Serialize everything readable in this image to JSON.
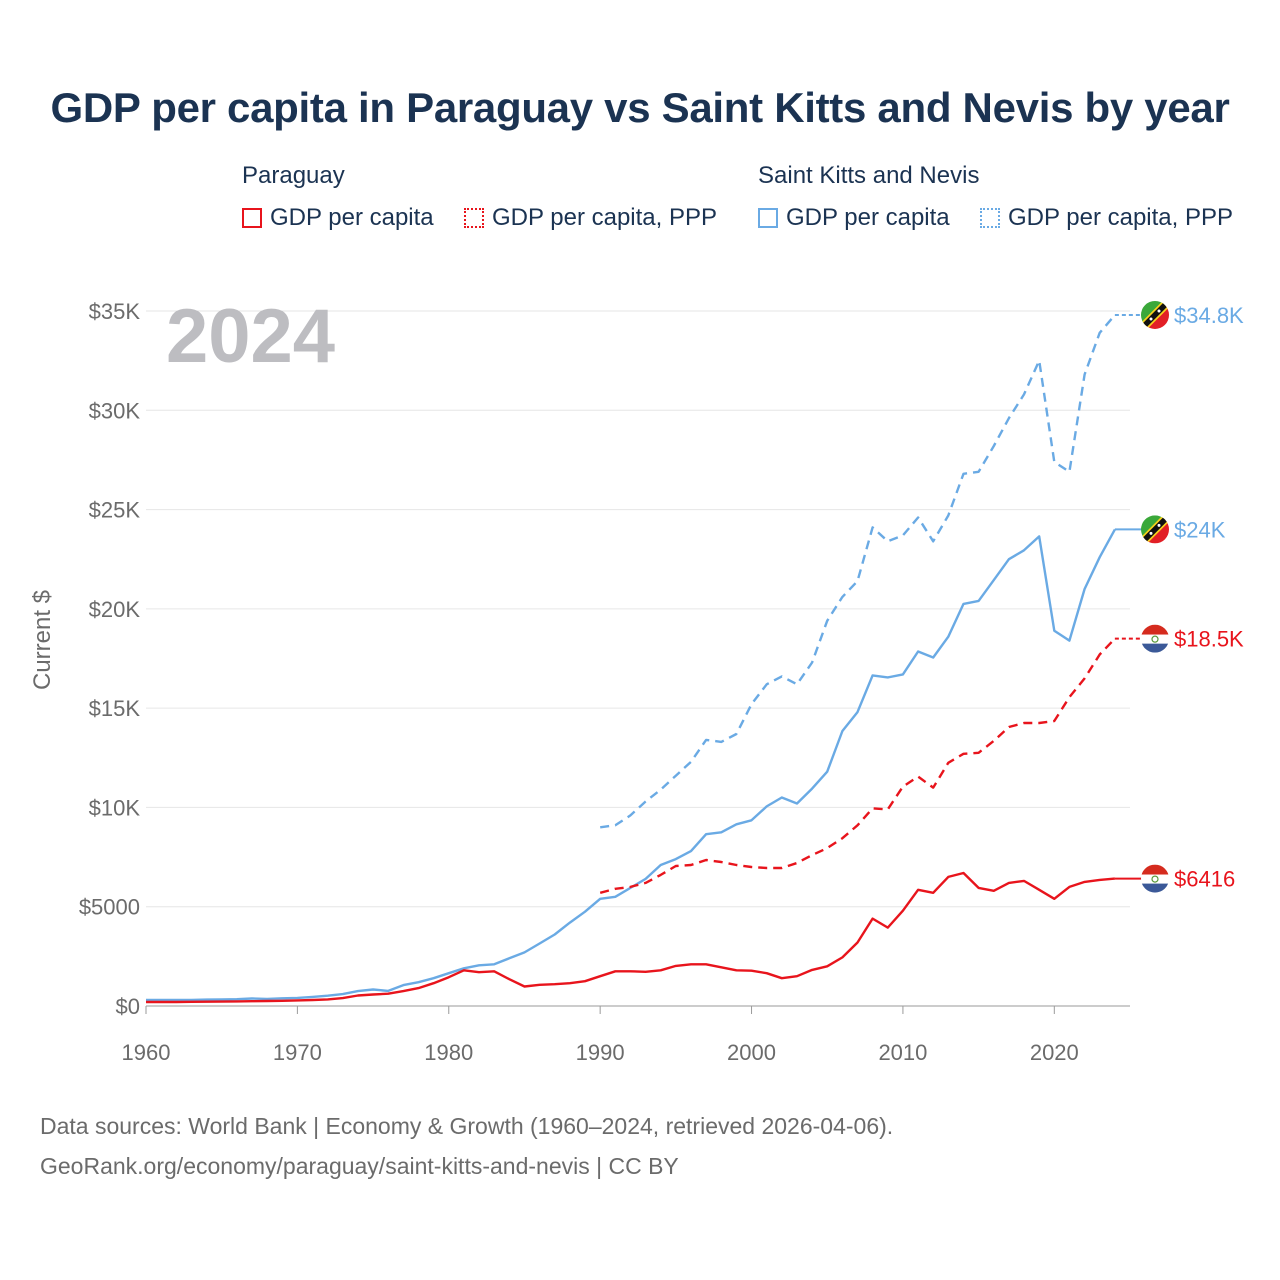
{
  "title": "GDP per capita in Paraguay vs Saint Kitts and Nevis by year",
  "legend": {
    "groups": [
      {
        "name": "Paraguay",
        "items": [
          "GDP per capita",
          "GDP per capita, PPP"
        ]
      },
      {
        "name": "Saint Kitts and Nevis",
        "items": [
          "GDP per capita",
          "GDP per capita, PPP"
        ]
      }
    ]
  },
  "colors": {
    "paraguay": "#e8141c",
    "skn": "#6aaae4",
    "grid": "#e6e6e6",
    "axis": "#9a9a9a"
  },
  "year_label": "2024",
  "footer": {
    "line1": "Data sources: World Bank | Economy & Growth (1960–2024, retrieved 2026-04-06).",
    "line2": "GeoRank.org/economy/paraguay/saint-kitts-and-nevis | CC BY"
  },
  "chart_data": {
    "type": "line",
    "title": "GDP per capita in Paraguay vs Saint Kitts and Nevis by year",
    "xlabel": "",
    "ylabel": "Current $",
    "xlim": [
      1960,
      2025
    ],
    "ylim": [
      0,
      35000
    ],
    "x_ticks": [
      1960,
      1970,
      1980,
      1990,
      2000,
      2010,
      2020
    ],
    "x_tick_labels": [
      "1960",
      "1970",
      "1980",
      "1990",
      "2000",
      "2010",
      "2020"
    ],
    "y_ticks": [
      0,
      5000,
      10000,
      15000,
      20000,
      25000,
      30000,
      35000
    ],
    "y_tick_labels": [
      "$0",
      "$5000",
      "$10K",
      "$15K",
      "$20K",
      "$25K",
      "$30K",
      "$35K"
    ],
    "series": [
      {
        "name": "Saint Kitts and Nevis GDP per capita, PPP",
        "country": "Saint Kitts and Nevis",
        "style": "dashed",
        "color": "#6aaae4",
        "end_label": "$34.8K",
        "points": [
          [
            1990,
            9000
          ],
          [
            1991,
            9100
          ],
          [
            1992,
            9600
          ],
          [
            1993,
            10300
          ],
          [
            1994,
            10900
          ],
          [
            1995,
            11600
          ],
          [
            1996,
            12300
          ],
          [
            1997,
            13400
          ],
          [
            1998,
            13300
          ],
          [
            1999,
            13700
          ],
          [
            2000,
            15200
          ],
          [
            2001,
            16200
          ],
          [
            2002,
            16600
          ],
          [
            2003,
            16200
          ],
          [
            2004,
            17300
          ],
          [
            2005,
            19400
          ],
          [
            2006,
            20600
          ],
          [
            2007,
            21400
          ],
          [
            2008,
            24100
          ],
          [
            2009,
            23400
          ],
          [
            2010,
            23700
          ],
          [
            2011,
            24600
          ],
          [
            2012,
            23400
          ],
          [
            2013,
            24700
          ],
          [
            2014,
            26800
          ],
          [
            2015,
            26900
          ],
          [
            2016,
            28200
          ],
          [
            2017,
            29600
          ],
          [
            2018,
            30800
          ],
          [
            2019,
            32500
          ],
          [
            2020,
            27400
          ],
          [
            2021,
            26900
          ],
          [
            2022,
            31800
          ],
          [
            2023,
            33900
          ],
          [
            2024,
            34800
          ]
        ]
      },
      {
        "name": "Saint Kitts and Nevis GDP per capita",
        "country": "Saint Kitts and Nevis",
        "style": "solid",
        "color": "#6aaae4",
        "end_label": "$24K",
        "points": [
          [
            1960,
            300
          ],
          [
            1961,
            300
          ],
          [
            1962,
            300
          ],
          [
            1963,
            300
          ],
          [
            1964,
            320
          ],
          [
            1965,
            330
          ],
          [
            1966,
            340
          ],
          [
            1967,
            380
          ],
          [
            1968,
            360
          ],
          [
            1969,
            390
          ],
          [
            1970,
            410
          ],
          [
            1971,
            460
          ],
          [
            1972,
            520
          ],
          [
            1973,
            600
          ],
          [
            1974,
            750
          ],
          [
            1975,
            830
          ],
          [
            1976,
            760
          ],
          [
            1977,
            1050
          ],
          [
            1978,
            1200
          ],
          [
            1979,
            1400
          ],
          [
            1980,
            1650
          ],
          [
            1981,
            1900
          ],
          [
            1982,
            2050
          ],
          [
            1983,
            2100
          ],
          [
            1984,
            2400
          ],
          [
            1985,
            2700
          ],
          [
            1986,
            3150
          ],
          [
            1987,
            3600
          ],
          [
            1988,
            4200
          ],
          [
            1989,
            4750
          ],
          [
            1990,
            5400
          ],
          [
            1991,
            5500
          ],
          [
            1992,
            5950
          ],
          [
            1993,
            6400
          ],
          [
            1994,
            7100
          ],
          [
            1995,
            7400
          ],
          [
            1996,
            7800
          ],
          [
            1997,
            8650
          ],
          [
            1998,
            8750
          ],
          [
            1999,
            9150
          ],
          [
            2000,
            9350
          ],
          [
            2001,
            10050
          ],
          [
            2002,
            10500
          ],
          [
            2003,
            10200
          ],
          [
            2004,
            10950
          ],
          [
            2005,
            11800
          ],
          [
            2006,
            13850
          ],
          [
            2007,
            14800
          ],
          [
            2008,
            16650
          ],
          [
            2009,
            16550
          ],
          [
            2010,
            16700
          ],
          [
            2011,
            17850
          ],
          [
            2012,
            17550
          ],
          [
            2013,
            18600
          ],
          [
            2014,
            20250
          ],
          [
            2015,
            20400
          ],
          [
            2016,
            21450
          ],
          [
            2017,
            22500
          ],
          [
            2018,
            22950
          ],
          [
            2019,
            23650
          ],
          [
            2020,
            18900
          ],
          [
            2021,
            18400
          ],
          [
            2022,
            21000
          ],
          [
            2023,
            22600
          ],
          [
            2024,
            24000
          ]
        ]
      },
      {
        "name": "Paraguay GDP per capita, PPP",
        "country": "Paraguay",
        "style": "dashed",
        "color": "#e8141c",
        "end_label": "$18.5K",
        "points": [
          [
            1990,
            5700
          ],
          [
            1991,
            5900
          ],
          [
            1992,
            6000
          ],
          [
            1993,
            6200
          ],
          [
            1994,
            6600
          ],
          [
            1995,
            7050
          ],
          [
            1996,
            7100
          ],
          [
            1997,
            7350
          ],
          [
            1998,
            7250
          ],
          [
            1999,
            7100
          ],
          [
            2000,
            7000
          ],
          [
            2001,
            6950
          ],
          [
            2002,
            6950
          ],
          [
            2003,
            7200
          ],
          [
            2004,
            7600
          ],
          [
            2005,
            7950
          ],
          [
            2006,
            8450
          ],
          [
            2007,
            9100
          ],
          [
            2008,
            9950
          ],
          [
            2009,
            9900
          ],
          [
            2010,
            11050
          ],
          [
            2011,
            11550
          ],
          [
            2012,
            11000
          ],
          [
            2013,
            12250
          ],
          [
            2014,
            12700
          ],
          [
            2015,
            12750
          ],
          [
            2016,
            13350
          ],
          [
            2017,
            14050
          ],
          [
            2018,
            14250
          ],
          [
            2019,
            14250
          ],
          [
            2020,
            14350
          ],
          [
            2021,
            15550
          ],
          [
            2022,
            16500
          ],
          [
            2023,
            17700
          ],
          [
            2024,
            18500
          ]
        ]
      },
      {
        "name": "Paraguay GDP per capita",
        "country": "Paraguay",
        "style": "solid",
        "color": "#e8141c",
        "end_label": "$6416",
        "points": [
          [
            1960,
            200
          ],
          [
            1961,
            200
          ],
          [
            1962,
            200
          ],
          [
            1963,
            210
          ],
          [
            1964,
            215
          ],
          [
            1965,
            220
          ],
          [
            1966,
            230
          ],
          [
            1967,
            240
          ],
          [
            1968,
            250
          ],
          [
            1969,
            260
          ],
          [
            1970,
            280
          ],
          [
            1971,
            300
          ],
          [
            1972,
            330
          ],
          [
            1973,
            400
          ],
          [
            1974,
            530
          ],
          [
            1975,
            580
          ],
          [
            1976,
            620
          ],
          [
            1977,
            750
          ],
          [
            1978,
            900
          ],
          [
            1979,
            1150
          ],
          [
            1980,
            1450
          ],
          [
            1981,
            1800
          ],
          [
            1982,
            1700
          ],
          [
            1983,
            1750
          ],
          [
            1984,
            1350
          ],
          [
            1985,
            980
          ],
          [
            1986,
            1070
          ],
          [
            1987,
            1100
          ],
          [
            1988,
            1150
          ],
          [
            1989,
            1250
          ],
          [
            1990,
            1500
          ],
          [
            1991,
            1750
          ],
          [
            1992,
            1750
          ],
          [
            1993,
            1720
          ],
          [
            1994,
            1800
          ],
          [
            1995,
            2020
          ],
          [
            1996,
            2100
          ],
          [
            1997,
            2100
          ],
          [
            1998,
            1950
          ],
          [
            1999,
            1800
          ],
          [
            2000,
            1780
          ],
          [
            2001,
            1650
          ],
          [
            2002,
            1400
          ],
          [
            2003,
            1500
          ],
          [
            2004,
            1820
          ],
          [
            2005,
            2000
          ],
          [
            2006,
            2450
          ],
          [
            2007,
            3200
          ],
          [
            2008,
            4400
          ],
          [
            2009,
            3950
          ],
          [
            2010,
            4800
          ],
          [
            2011,
            5850
          ],
          [
            2012,
            5700
          ],
          [
            2013,
            6500
          ],
          [
            2014,
            6700
          ],
          [
            2015,
            5950
          ],
          [
            2016,
            5800
          ],
          [
            2017,
            6200
          ],
          [
            2018,
            6300
          ],
          [
            2019,
            5850
          ],
          [
            2020,
            5400
          ],
          [
            2021,
            6000
          ],
          [
            2022,
            6250
          ],
          [
            2023,
            6350
          ],
          [
            2024,
            6416
          ]
        ]
      }
    ]
  }
}
